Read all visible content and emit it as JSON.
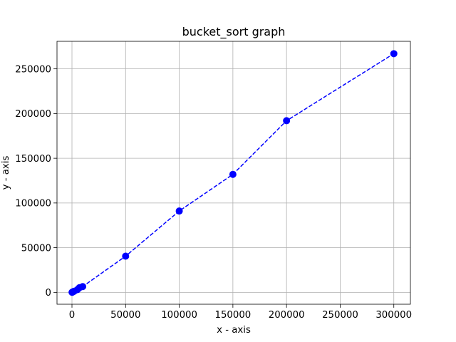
{
  "chart_data": {
    "type": "line",
    "title": "bucket_sort graph",
    "xlabel": "x - axis",
    "ylabel": "y - axis",
    "xlim": [
      -13950,
      315450
    ],
    "ylim": [
      -13270,
      280800
    ],
    "xticks": [
      0,
      50000,
      100000,
      150000,
      200000,
      250000,
      300000
    ],
    "yticks": [
      0,
      50000,
      100000,
      150000,
      200000,
      250000
    ],
    "grid": true,
    "legend": false,
    "series": [
      {
        "color": "#0000ff",
        "line_style": "dashed",
        "marker": "circle",
        "points": [
          {
            "x": 100,
            "y": 80
          },
          {
            "x": 500,
            "y": 300
          },
          {
            "x": 1000,
            "y": 700
          },
          {
            "x": 2000,
            "y": 1300
          },
          {
            "x": 5000,
            "y": 3000
          },
          {
            "x": 7000,
            "y": 5300
          },
          {
            "x": 10000,
            "y": 6500
          },
          {
            "x": 50000,
            "y": 40500
          },
          {
            "x": 100000,
            "y": 91000
          },
          {
            "x": 150000,
            "y": 132000
          },
          {
            "x": 200000,
            "y": 192000
          },
          {
            "x": 300000,
            "y": 267000
          }
        ]
      }
    ]
  }
}
